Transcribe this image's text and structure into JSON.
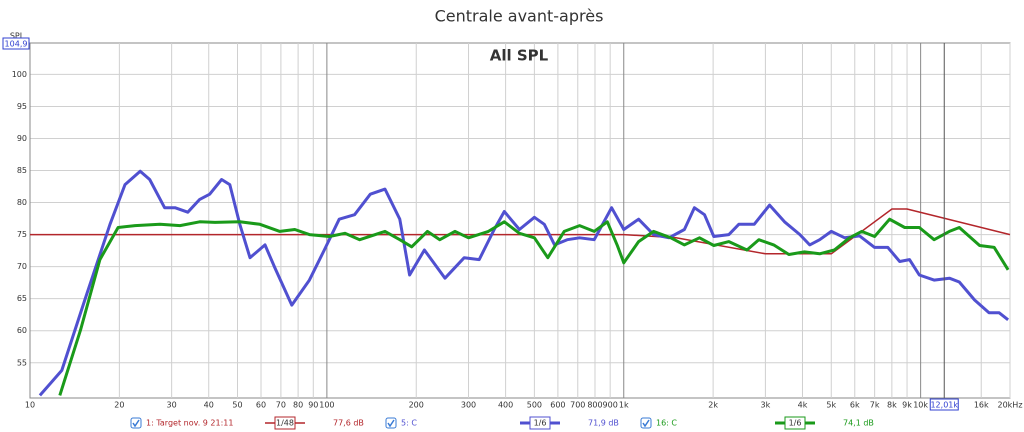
{
  "chart_data": {
    "type": "line",
    "title": "Centrale avant-après",
    "subtitle": "All SPL",
    "y_label": "SPL",
    "xscale": "log",
    "grid": true,
    "xlim": [
      10,
      20000
    ],
    "ylim": [
      49.5,
      104.9
    ],
    "yticks": [
      55,
      60,
      65,
      70,
      75,
      80,
      85,
      90,
      95,
      100
    ],
    "xticks": [
      10,
      20,
      30,
      40,
      50,
      60,
      70,
      80,
      90,
      100,
      200,
      300,
      400,
      500,
      600,
      700,
      800,
      900,
      {
        "value": 1000,
        "label": "1k"
      },
      {
        "value": 2000,
        "label": "2k"
      },
      {
        "value": 3000,
        "label": "3k"
      },
      {
        "value": 4000,
        "label": "4k"
      },
      {
        "value": 5000,
        "label": "5k"
      },
      {
        "value": 6000,
        "label": "6k"
      },
      {
        "value": 7000,
        "label": "7k"
      },
      {
        "value": 8000,
        "label": "8k"
      },
      {
        "value": 9000,
        "label": "9k"
      },
      {
        "value": 10000,
        "label": "10k"
      },
      {
        "value": 16000,
        "label": "16k"
      },
      {
        "value": 20000,
        "label": "20kHz"
      }
    ],
    "cursor": {
      "x": {
        "value": 12010,
        "label": "12,01k"
      },
      "y": {
        "value": 104.9,
        "label": "104,9"
      }
    },
    "series": [
      {
        "name": "1: Target nov. 9 21:11",
        "color": "#b3262b",
        "smoothing": "1/48",
        "level": "77,6 dB",
        "x": [
          10,
          1000,
          1500,
          3000,
          5000,
          8000,
          9000,
          20000
        ],
        "values": [
          75,
          75,
          74.5,
          72,
          72,
          79,
          79,
          75
        ]
      },
      {
        "name": "5: C",
        "color": "#5050d0",
        "smoothing": "1/6",
        "level": "71,9 dB",
        "x": [
          10.8,
          12.8,
          15.3,
          18.6,
          20.9,
          23.5,
          25.3,
          28.4,
          30.8,
          34,
          37.3,
          40.3,
          44.2,
          47.1,
          50.9,
          55.1,
          61.9,
          66.8,
          76.2,
          87.3,
          98,
          110,
          124,
          140,
          157,
          176,
          190,
          213,
          250,
          290,
          326,
          366,
          396,
          445,
          500,
          540,
          585,
          645,
          710,
          795,
          910,
          1000,
          1122,
          1260,
          1420,
          1600,
          1730,
          1870,
          2010,
          2260,
          2440,
          2750,
          3100,
          3480,
          3920,
          4230,
          4570,
          5000,
          5550,
          6230,
          7000,
          7750,
          8500,
          9170,
          9900,
          11100,
          12500,
          13500,
          15200,
          17000,
          18400,
          19700
        ],
        "values": [
          49.9,
          53.8,
          64.8,
          76.6,
          82.8,
          84.9,
          83.6,
          79.2,
          79.2,
          78.5,
          80.5,
          81.3,
          83.6,
          82.8,
          76.6,
          71.4,
          73.4,
          69.8,
          64,
          67.9,
          72.6,
          77.4,
          78.1,
          81.3,
          82.1,
          77.4,
          68.7,
          72.6,
          68.2,
          71.4,
          71.1,
          75.8,
          78.6,
          75.8,
          77.7,
          76.6,
          73.4,
          74.2,
          74.5,
          74.2,
          79.2,
          75.8,
          77.4,
          75,
          74.5,
          75.8,
          79.2,
          78.1,
          74.7,
          75,
          76.6,
          76.6,
          79.6,
          77,
          75,
          73.4,
          74.2,
          75.5,
          74.5,
          74.8,
          73,
          73,
          70.8,
          71.1,
          68.7,
          67.9,
          68.2,
          67.6,
          64.8,
          62.8,
          62.8,
          61.7
        ]
      },
      {
        "name": "16: C",
        "color": "#1a9a1a",
        "smoothing": "1/6",
        "level": "74,1 dB",
        "x": [
          12.6,
          14.8,
          17.2,
          19.8,
          22.6,
          27.4,
          32,
          37.3,
          42,
          50.9,
          59.5,
          69.4,
          78,
          87.3,
          102,
          115,
          129,
          157,
          176,
          193,
          218,
          240,
          270,
          300,
          350,
          396,
          445,
          500,
          555,
          630,
          710,
          795,
          880,
          950,
          1000,
          1122,
          1260,
          1440,
          1600,
          1800,
          2010,
          2260,
          2600,
          2850,
          3200,
          3600,
          4060,
          4570,
          5120,
          5760,
          6330,
          7000,
          7860,
          8840,
          9900,
          11100,
          12500,
          13500,
          15800,
          17700,
          19700
        ],
        "values": [
          49.9,
          60.1,
          71.1,
          76.1,
          76.4,
          76.6,
          76.4,
          77,
          76.9,
          77,
          76.6,
          75.5,
          75.8,
          75,
          74.7,
          75.2,
          74.2,
          75.5,
          74.2,
          73.1,
          75.5,
          74.2,
          75.5,
          74.5,
          75.5,
          77,
          75.2,
          74.5,
          71.4,
          75.5,
          76.4,
          75.5,
          77,
          73.4,
          70.6,
          73.9,
          75.5,
          74.5,
          73.4,
          74.5,
          73.3,
          73.9,
          72.6,
          74.2,
          73.4,
          71.9,
          72.3,
          72,
          72.6,
          74.5,
          75.5,
          74.7,
          77.4,
          76.1,
          76.1,
          74.2,
          75.5,
          76.1,
          73.3,
          73,
          69.5
        ]
      }
    ]
  }
}
